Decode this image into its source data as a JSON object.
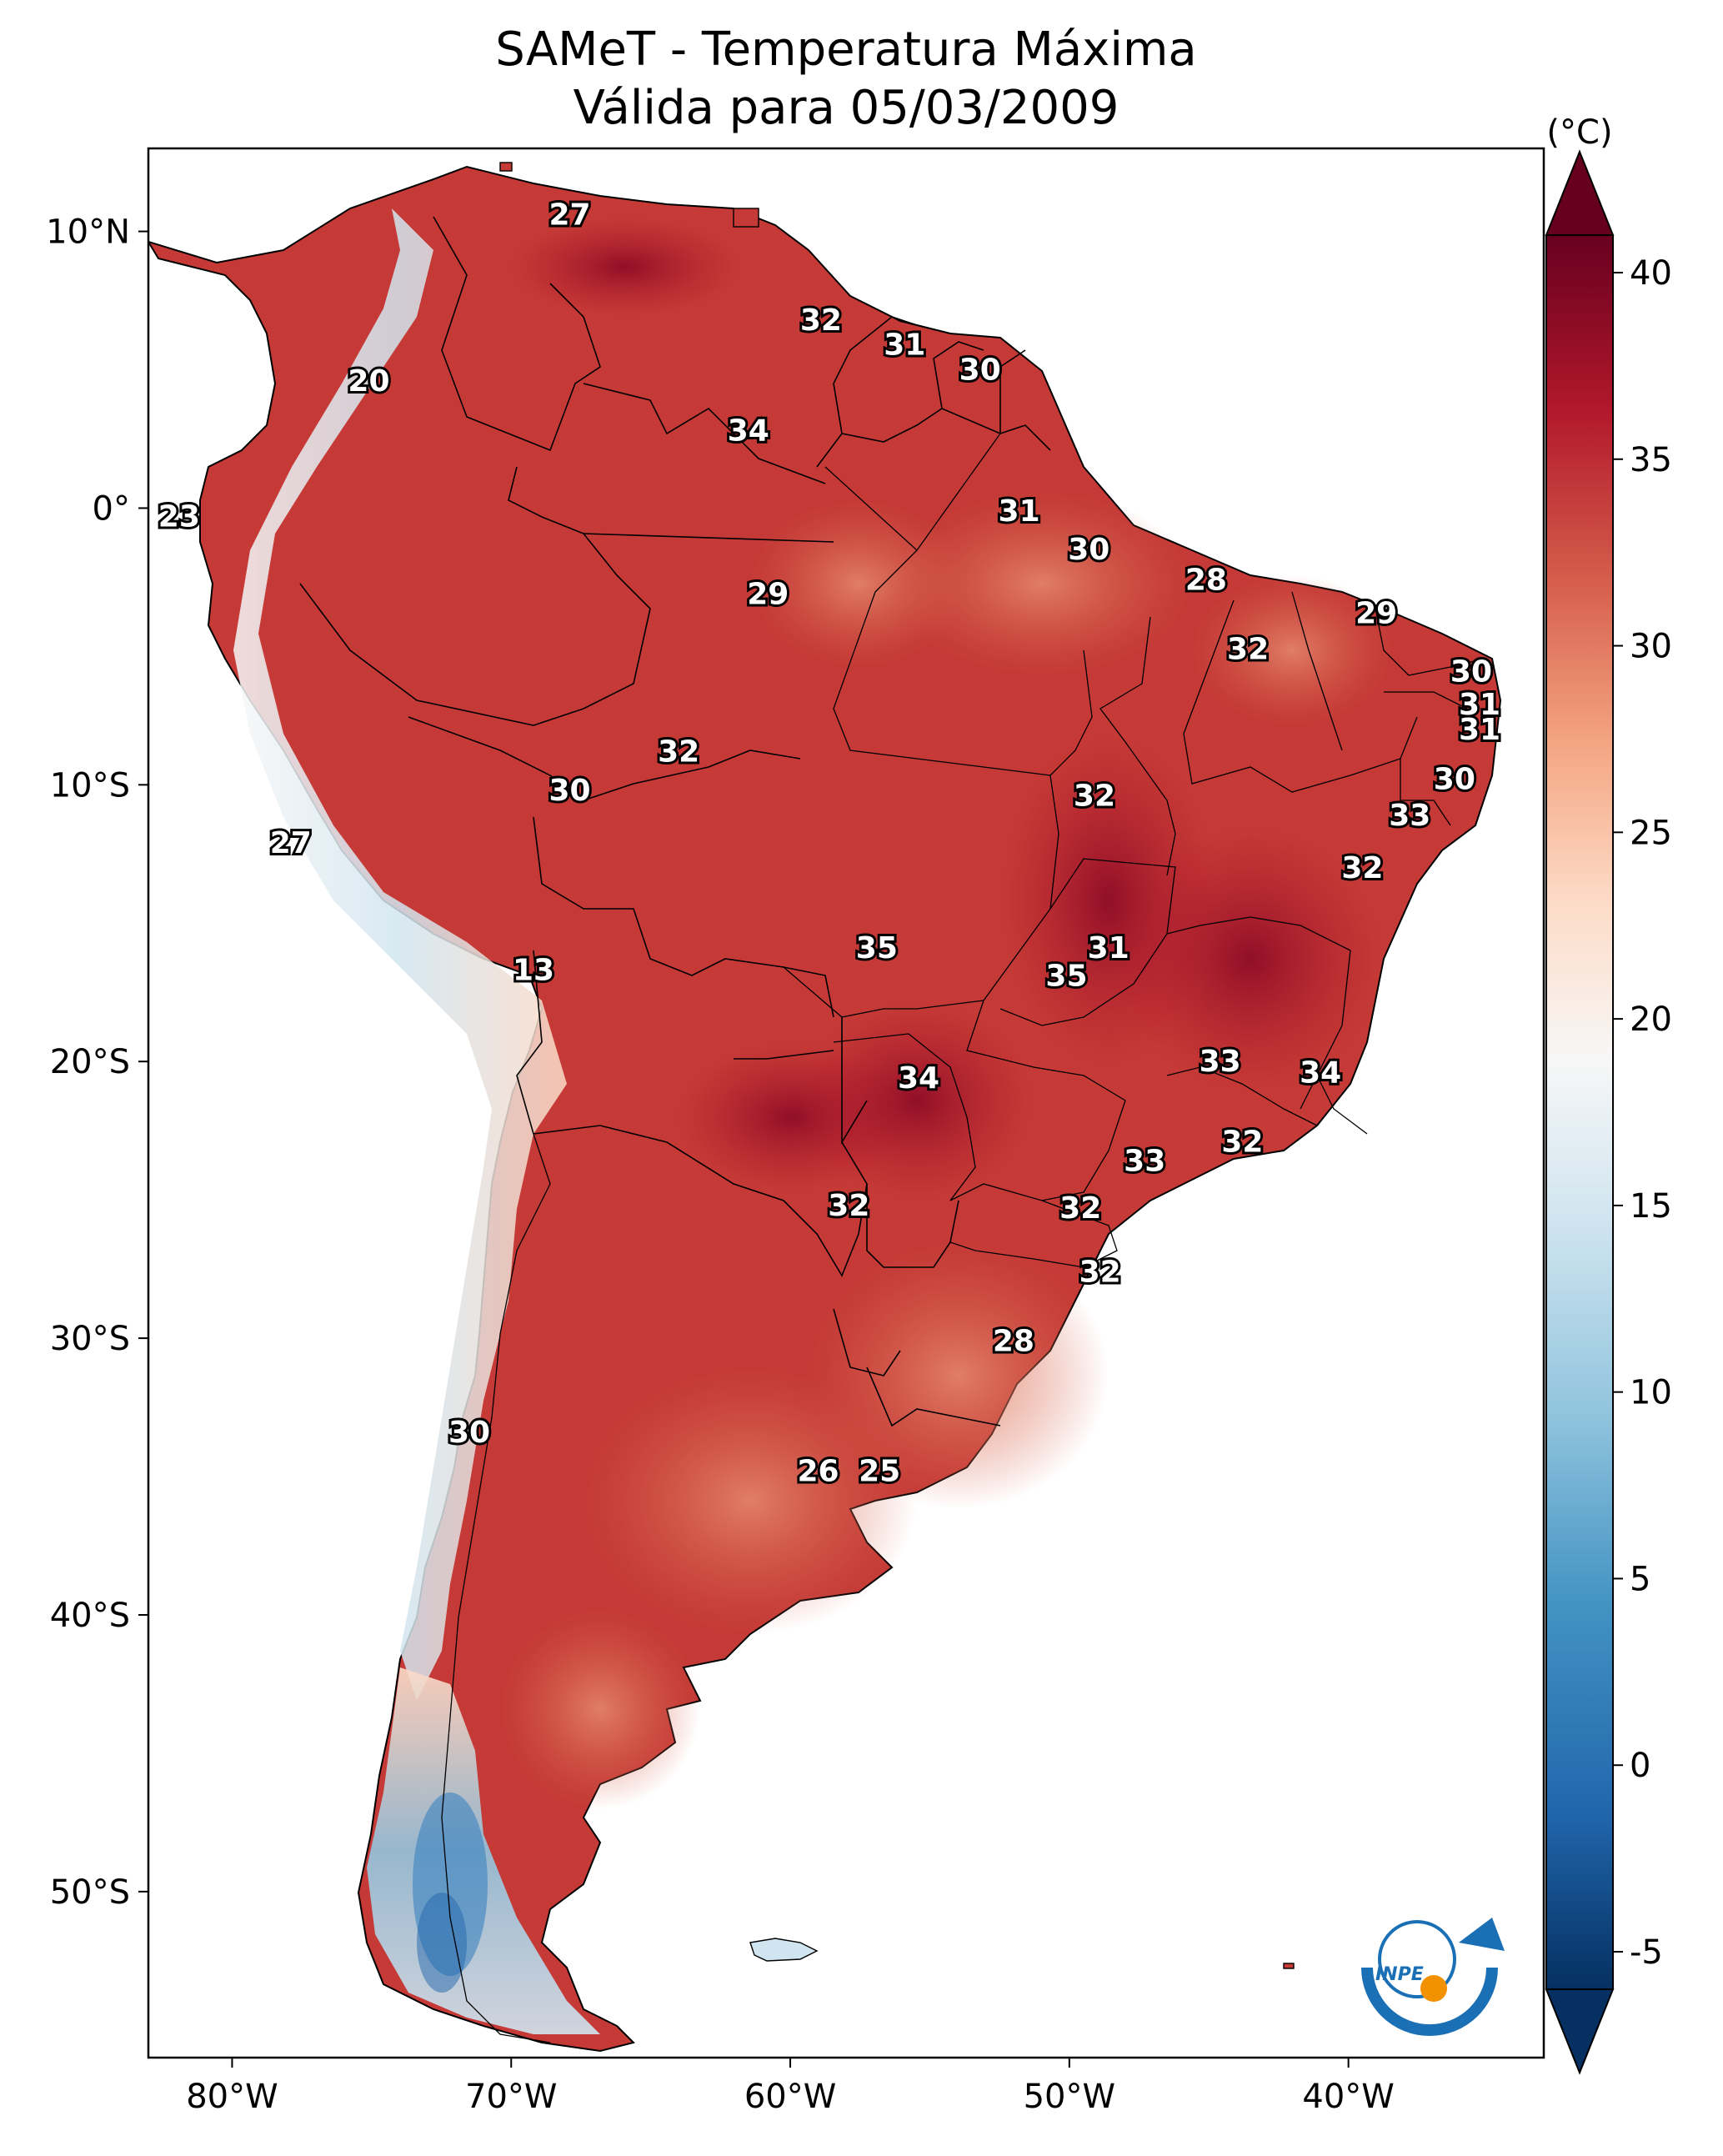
{
  "title": {
    "line1": "SAMeT - Temperatura Máxima",
    "line2": "Válida para 05/03/2009"
  },
  "map": {
    "lon_range": [
      -83,
      -33
    ],
    "lat_range": [
      -56,
      13
    ],
    "lon_ticks": [
      {
        "value": -80,
        "label": "80°W"
      },
      {
        "value": -70,
        "label": "70°W"
      },
      {
        "value": -60,
        "label": "60°W"
      },
      {
        "value": -50,
        "label": "50°W"
      },
      {
        "value": -40,
        "label": "40°W"
      }
    ],
    "lat_ticks": [
      {
        "value": 10,
        "label": "10°N"
      },
      {
        "value": 0,
        "label": "0°"
      },
      {
        "value": -10,
        "label": "10°S"
      },
      {
        "value": -20,
        "label": "20°S"
      },
      {
        "value": -30,
        "label": "30°S"
      },
      {
        "value": -40,
        "label": "40°S"
      },
      {
        "value": -50,
        "label": "50°S"
      }
    ],
    "station_labels": [
      {
        "text": "27",
        "lon": -67.9,
        "lat": 10.6
      },
      {
        "text": "32",
        "lon": -58.9,
        "lat": 6.8
      },
      {
        "text": "31",
        "lon": -55.9,
        "lat": 5.9
      },
      {
        "text": "30",
        "lon": -53.2,
        "lat": 5.0
      },
      {
        "text": "20",
        "lon": -75.1,
        "lat": 4.6
      },
      {
        "text": "34",
        "lon": -61.5,
        "lat": 2.8
      },
      {
        "text": "23",
        "lon": -81.9,
        "lat": -0.3
      },
      {
        "text": "31",
        "lon": -51.8,
        "lat": -0.1
      },
      {
        "text": "30",
        "lon": -49.3,
        "lat": -1.5
      },
      {
        "text": "28",
        "lon": -45.1,
        "lat": -2.6
      },
      {
        "text": "29",
        "lon": -60.8,
        "lat": -3.1
      },
      {
        "text": "29",
        "lon": -39.0,
        "lat": -3.8
      },
      {
        "text": "32",
        "lon": -43.6,
        "lat": -5.1
      },
      {
        "text": "30",
        "lon": -35.6,
        "lat": -5.9
      },
      {
        "text": "31",
        "lon": -35.3,
        "lat": -7.1
      },
      {
        "text": "31",
        "lon": -35.3,
        "lat": -8.0
      },
      {
        "text": "32",
        "lon": -64.0,
        "lat": -8.8
      },
      {
        "text": "30",
        "lon": -67.9,
        "lat": -10.2
      },
      {
        "text": "32",
        "lon": -49.1,
        "lat": -10.4
      },
      {
        "text": "30",
        "lon": -36.2,
        "lat": -9.8
      },
      {
        "text": "33",
        "lon": -37.8,
        "lat": -11.1
      },
      {
        "text": "27",
        "lon": -77.9,
        "lat": -12.1
      },
      {
        "text": "32",
        "lon": -39.5,
        "lat": -13.0
      },
      {
        "text": "35",
        "lon": -56.9,
        "lat": -15.9
      },
      {
        "text": "31",
        "lon": -48.6,
        "lat": -15.9
      },
      {
        "text": "35",
        "lon": -50.1,
        "lat": -16.9
      },
      {
        "text": "13",
        "lon": -69.2,
        "lat": -16.7
      },
      {
        "text": "33",
        "lon": -44.6,
        "lat": -20.0
      },
      {
        "text": "34",
        "lon": -41.0,
        "lat": -20.4
      },
      {
        "text": "34",
        "lon": -55.4,
        "lat": -20.6
      },
      {
        "text": "32",
        "lon": -43.8,
        "lat": -22.9
      },
      {
        "text": "33",
        "lon": -47.3,
        "lat": -23.6
      },
      {
        "text": "32",
        "lon": -57.9,
        "lat": -25.2
      },
      {
        "text": "32",
        "lon": -49.6,
        "lat": -25.3
      },
      {
        "text": "32",
        "lon": -48.9,
        "lat": -27.6
      },
      {
        "text": "28",
        "lon": -52.0,
        "lat": -30.1
      },
      {
        "text": "30",
        "lon": -71.5,
        "lat": -33.4
      },
      {
        "text": "26",
        "lon": -59.0,
        "lat": -34.8
      },
      {
        "text": "25",
        "lon": -56.8,
        "lat": -34.8
      }
    ]
  },
  "colorbar": {
    "unit_label": "(°C)",
    "min": -5,
    "max": 40,
    "ticks": [
      {
        "value": 40,
        "label": "40"
      },
      {
        "value": 35,
        "label": "35"
      },
      {
        "value": 30,
        "label": "30"
      },
      {
        "value": 25,
        "label": "25"
      },
      {
        "value": 20,
        "label": "20"
      },
      {
        "value": 15,
        "label": "15"
      },
      {
        "value": 10,
        "label": "10"
      },
      {
        "value": 5,
        "label": "5"
      },
      {
        "value": 0,
        "label": "0"
      },
      {
        "value": -5,
        "label": "-5"
      }
    ],
    "colors": [
      "#053061",
      "#2166ac",
      "#4393c3",
      "#92c5de",
      "#d1e5f0",
      "#f7f7f7",
      "#fddbc7",
      "#f4a582",
      "#d6604d",
      "#b2182b",
      "#67001f"
    ]
  },
  "logo": {
    "text": "INPE",
    "colors": {
      "blue": "#1a6fb5",
      "orange": "#f39200"
    }
  }
}
